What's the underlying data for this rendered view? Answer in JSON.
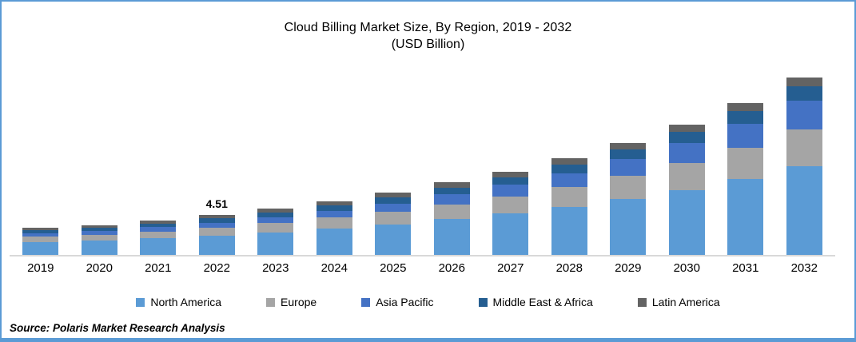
{
  "title": "Cloud Billing Market Size, By Region, 2019 - 2032",
  "subtitle": "(USD Billion)",
  "source": "Source: Polaris Market Research  Analysis",
  "accent_border_color": "#5B9BD5",
  "axis_line_color": "#D9D9D9",
  "annotation": {
    "category": "2022",
    "text": "4.51"
  },
  "chart_data": {
    "type": "bar",
    "stacked": true,
    "title": "Cloud Billing Market Size, By Region, 2019 - 2032",
    "subtitle": "(USD Billion)",
    "xlabel": "",
    "ylabel": "USD Billion",
    "ylim": [
      0,
      20.7
    ],
    "grid": false,
    "legend_position": "bottom",
    "categories": [
      "2019",
      "2020",
      "2021",
      "2022",
      "2023",
      "2024",
      "2025",
      "2026",
      "2027",
      "2028",
      "2029",
      "2030",
      "2031",
      "2032"
    ],
    "series": [
      {
        "name": "North America",
        "color": "#5B9BD5",
        "values": [
          1.42,
          1.6,
          1.86,
          2.18,
          2.55,
          2.98,
          3.45,
          4.05,
          4.66,
          5.41,
          6.29,
          7.32,
          8.54,
          9.97
        ]
      },
      {
        "name": "Europe",
        "color": "#A5A5A5",
        "values": [
          0.61,
          0.67,
          0.77,
          0.9,
          1.05,
          1.22,
          1.42,
          1.67,
          1.93,
          2.25,
          2.62,
          3.06,
          3.57,
          4.17
        ]
      },
      {
        "name": "Asia Pacific",
        "color": "#4472C4",
        "values": [
          0.43,
          0.45,
          0.5,
          0.56,
          0.66,
          0.78,
          0.92,
          1.1,
          1.31,
          1.57,
          1.88,
          2.25,
          2.69,
          3.22
        ]
      },
      {
        "name": "Middle East & Africa",
        "color": "#255E91",
        "values": [
          0.34,
          0.37,
          0.43,
          0.47,
          0.52,
          0.59,
          0.66,
          0.76,
          0.85,
          0.97,
          1.1,
          1.25,
          1.42,
          1.62
        ]
      },
      {
        "name": "Latin America",
        "color": "#636363",
        "values": [
          0.25,
          0.28,
          0.32,
          0.4,
          0.45,
          0.5,
          0.55,
          0.61,
          0.65,
          0.7,
          0.76,
          0.84,
          0.93,
          1.03
        ]
      }
    ],
    "totals": [
      3.05,
      3.37,
      3.88,
      4.51,
      5.23,
      6.07,
      7.0,
      8.19,
      9.4,
      10.9,
      12.65,
      14.72,
      17.15,
      20.01
    ],
    "data_labels": [
      {
        "category": "2022",
        "value": 4.51
      }
    ]
  }
}
